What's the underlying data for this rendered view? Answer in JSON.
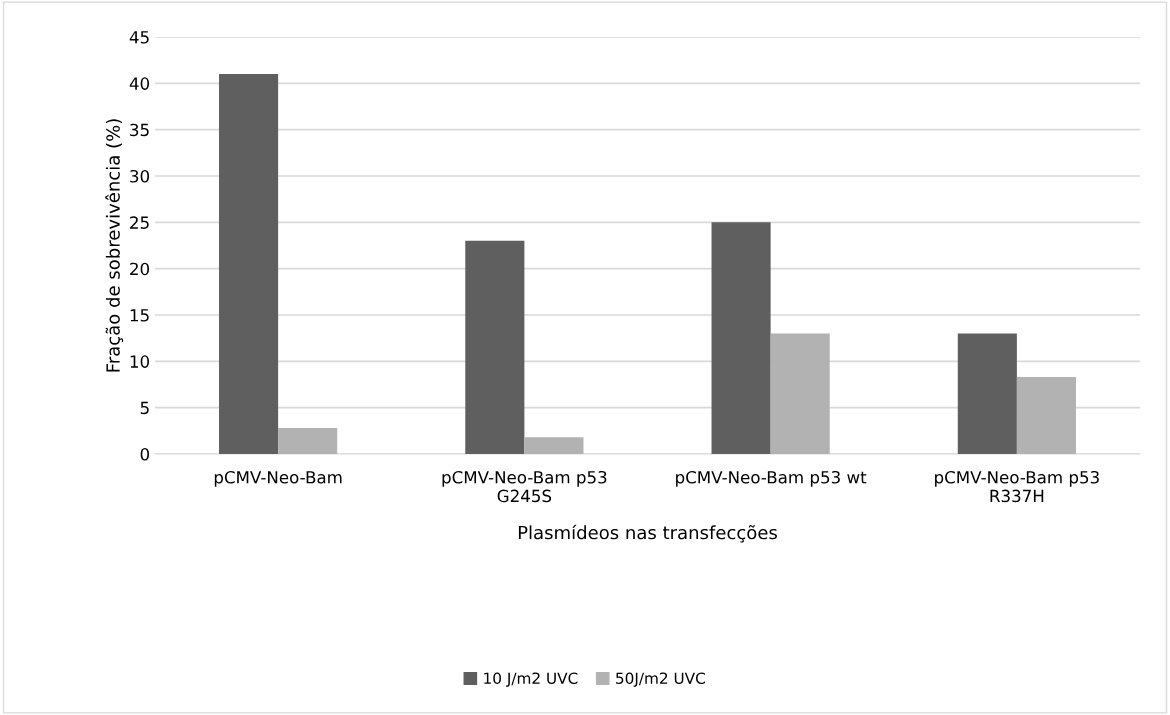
{
  "chart_data": {
    "type": "bar",
    "xlabel": "Plasmídeos nas transfecções",
    "ylabel": "Fração de sobrevivência (%)",
    "categories": [
      "pCMV-Neo-Bam",
      "pCMV-Neo-Bam p53\nG245S",
      "pCMV-Neo-Bam p53 wt",
      "pCMV-Neo-Bam p53\nR337H"
    ],
    "series": [
      {
        "name": "10 J/m2 UVC",
        "color": "#5f5f5f",
        "values": [
          41,
          23,
          25,
          13
        ]
      },
      {
        "name": "50J/m2 UVC",
        "color": "#b2b2b2",
        "values": [
          2.8,
          1.8,
          13,
          8.3
        ]
      }
    ],
    "ylim": [
      0,
      45
    ],
    "yticks": [
      0,
      5,
      10,
      15,
      20,
      25,
      30,
      35,
      40,
      45
    ],
    "grid": "y",
    "legend": "bottom"
  }
}
